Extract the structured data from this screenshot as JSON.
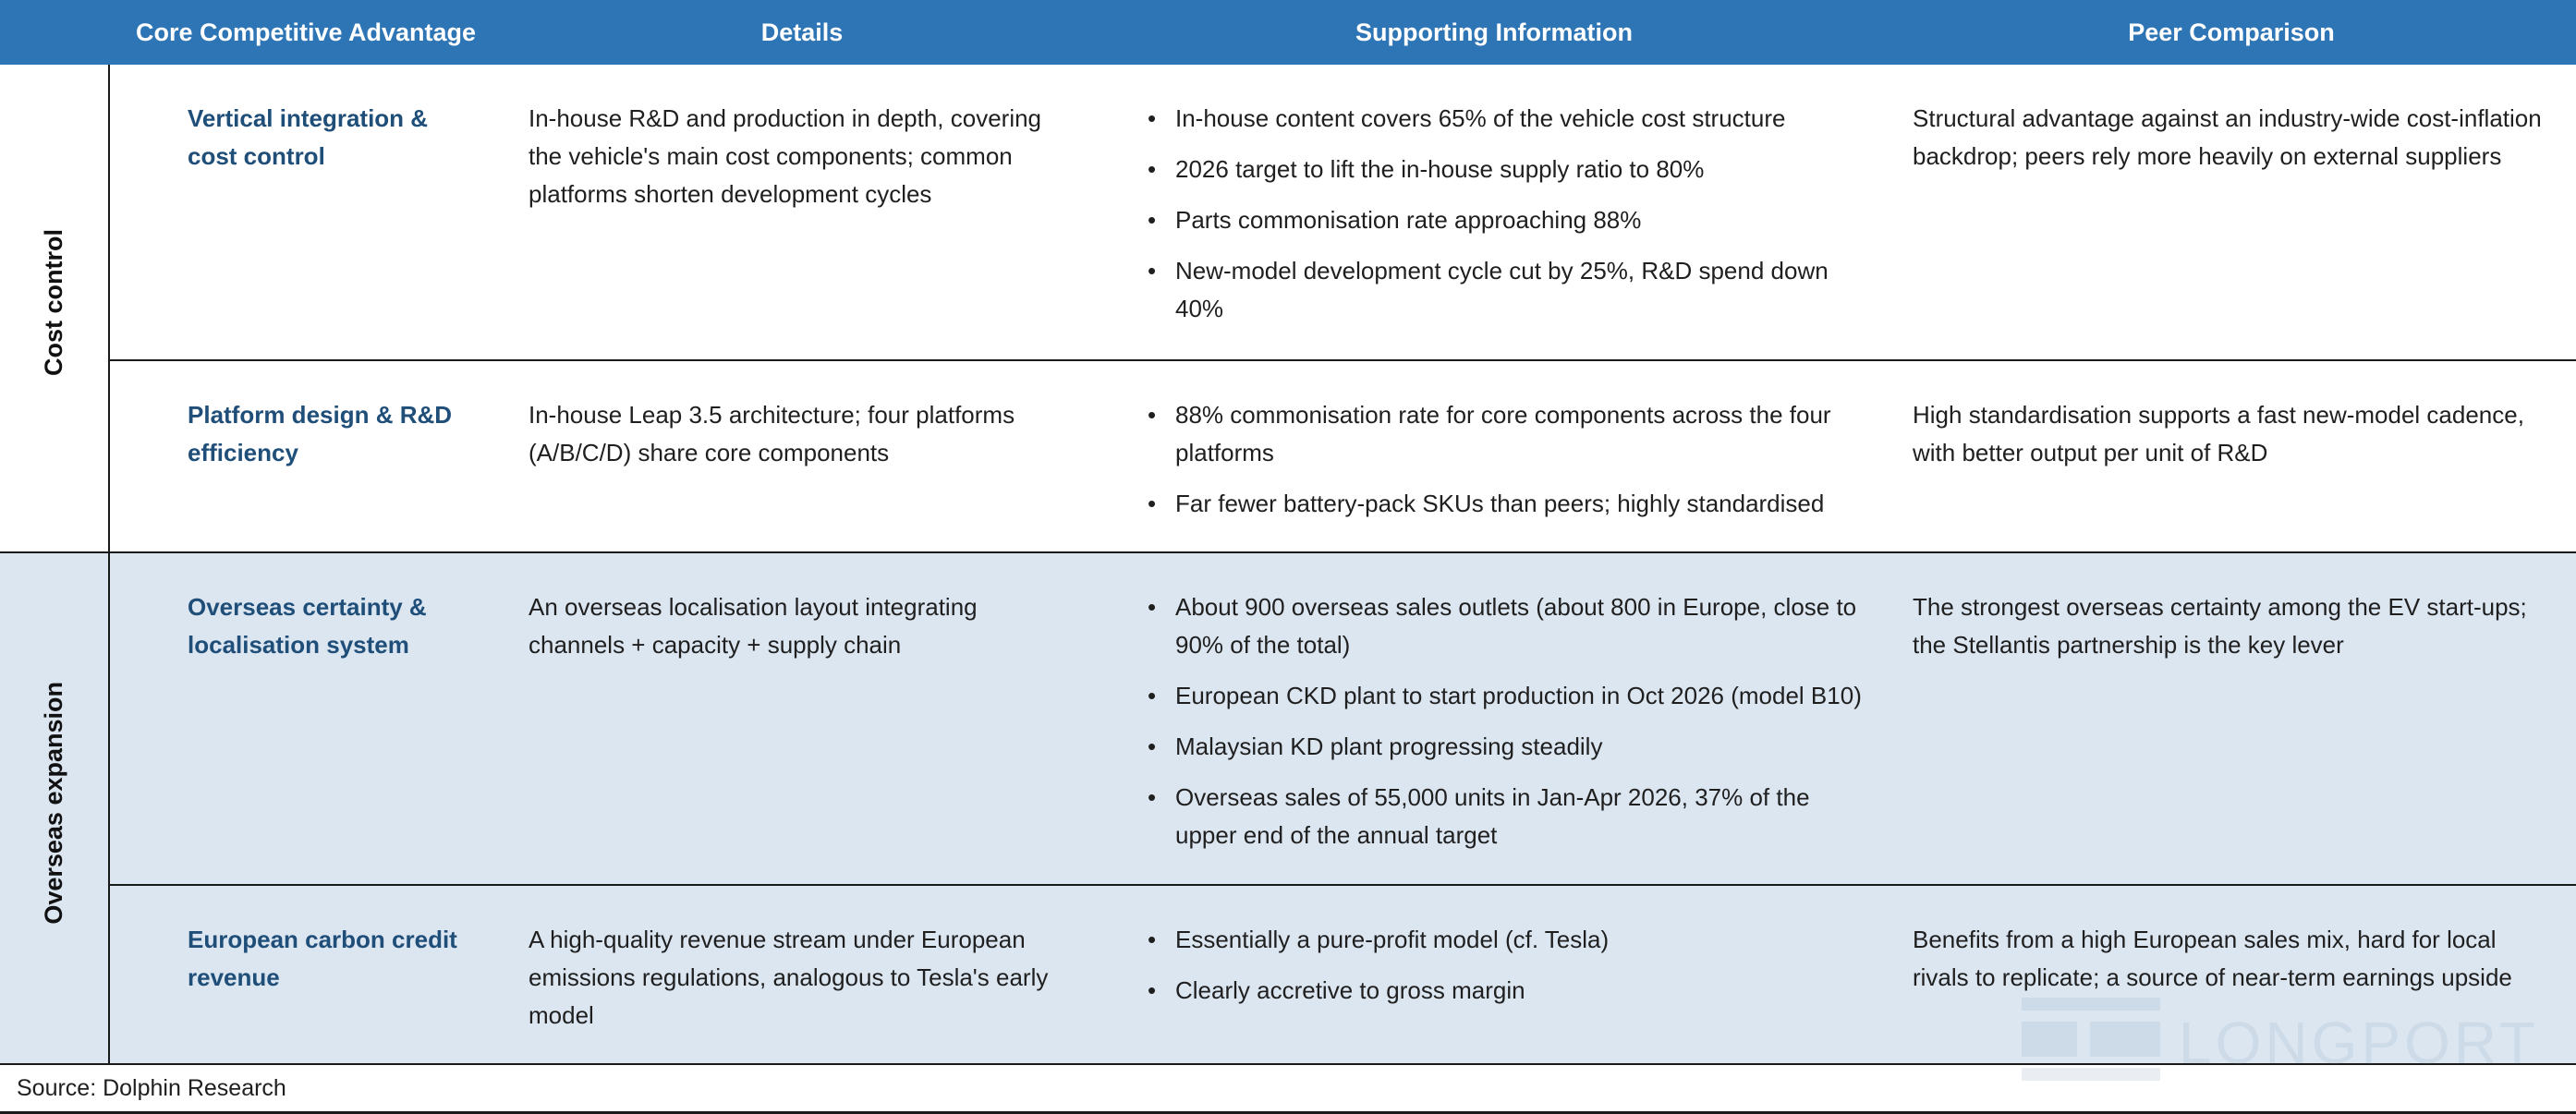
{
  "headers": [
    "Core Competitive Advantage",
    "Details",
    "Supporting Information",
    "Peer Comparison"
  ],
  "groups": [
    {
      "label": "Cost control",
      "rows": [
        {
          "advantage": "Vertical integration & cost control",
          "details": "In-house R&D and production in depth, covering the vehicle's main cost components; common platforms shorten development cycles",
          "supporting": [
            "In-house content covers 65% of the vehicle cost structure",
            "2026 target to lift the in-house supply ratio to 80%",
            "Parts commonisation rate approaching 88%",
            "New-model development cycle cut by 25%, R&D spend down 40%"
          ],
          "peer": "Structural advantage against an industry-wide cost-inflation backdrop; peers rely more heavily on external suppliers"
        },
        {
          "advantage": "Platform design & R&D efficiency",
          "details": "In-house Leap 3.5 architecture; four platforms (A/B/C/D) share core components",
          "supporting": [
            "88% commonisation rate for core components across the four platforms",
            "Far fewer battery-pack SKUs than peers; highly standardised"
          ],
          "peer": "High standardisation supports a fast new-model cadence, with better output per unit of R&D"
        }
      ]
    },
    {
      "label": "Overseas expansion",
      "rows": [
        {
          "advantage": "Overseas certainty & localisation system",
          "details": "An overseas localisation layout integrating channels + capacity + supply chain",
          "supporting": [
            "About 900 overseas sales outlets (about 800 in Europe, close to 90% of the total)",
            "European CKD plant to start production in Oct 2026 (model B10)",
            "Malaysian KD plant progressing steadily",
            "Overseas sales of 55,000 units in Jan-Apr 2026, 37% of the upper end of the annual target"
          ],
          "peer": "The strongest overseas certainty among the EV start-ups; the Stellantis partnership is the key lever"
        },
        {
          "advantage": "European carbon credit revenue",
          "details": "A high-quality revenue stream under European emissions regulations, analogous to Tesla's early model",
          "supporting": [
            "Essentially a pure-profit model (cf. Tesla)",
            "Clearly accretive to gross margin"
          ],
          "peer": "Benefits from a high European sales mix, hard for local rivals to replicate; a source of near-term earnings upside"
        }
      ]
    }
  ],
  "bullet_glyph": "•",
  "source": "Source: Dolphin Research",
  "watermark": "LONGPORT"
}
